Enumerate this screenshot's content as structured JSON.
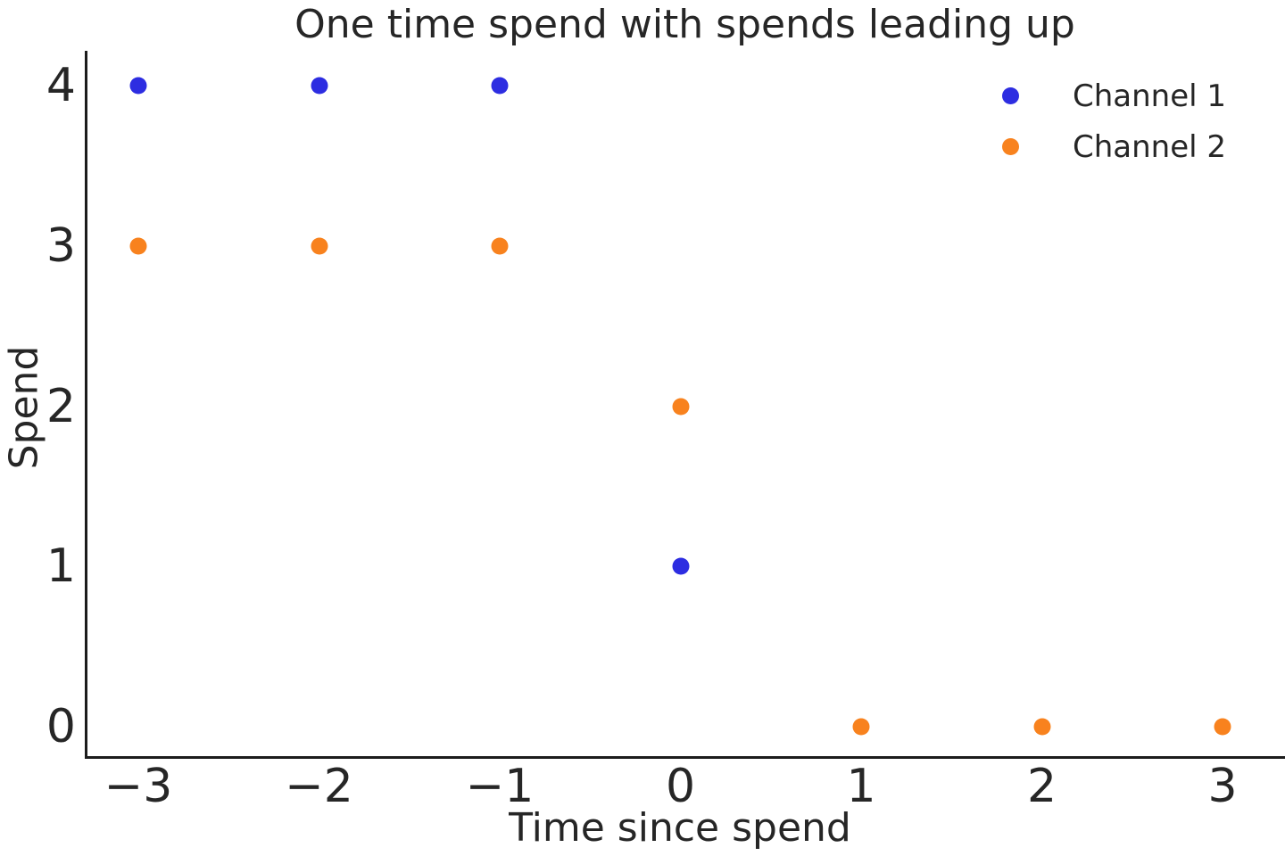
{
  "chart_data": {
    "type": "scatter",
    "title": "One time spend with spends leading up",
    "xlabel": "Time since spend",
    "ylabel": "Spend",
    "xtick_values": [
      -3,
      -2,
      -1,
      0,
      1,
      2,
      3
    ],
    "xtick_labels": [
      "−3",
      "−2",
      "−1",
      "0",
      "1",
      "2",
      "3"
    ],
    "ytick_values": [
      0,
      1,
      2,
      3,
      4
    ],
    "ytick_labels": [
      "0",
      "1",
      "2",
      "3",
      "4"
    ],
    "xlim": [
      -3.28,
      3.35
    ],
    "ylim": [
      -0.2,
      4.22
    ],
    "grid": false,
    "legend_position": "upper right",
    "series": [
      {
        "name": "Channel 1",
        "color": "#2d2de1",
        "points": [
          [
            -3,
            4
          ],
          [
            -2,
            4
          ],
          [
            -1,
            4
          ],
          [
            0,
            1
          ]
        ]
      },
      {
        "name": "Channel 2",
        "color": "#f8821e",
        "points": [
          [
            -3,
            3
          ],
          [
            -2,
            3
          ],
          [
            -1,
            3
          ],
          [
            0,
            2
          ],
          [
            1,
            0
          ],
          [
            2,
            0
          ],
          [
            3,
            0
          ]
        ]
      }
    ]
  },
  "colors": {
    "text": "#262626",
    "spine": "#1c1c1c",
    "background": "#ffffff"
  }
}
